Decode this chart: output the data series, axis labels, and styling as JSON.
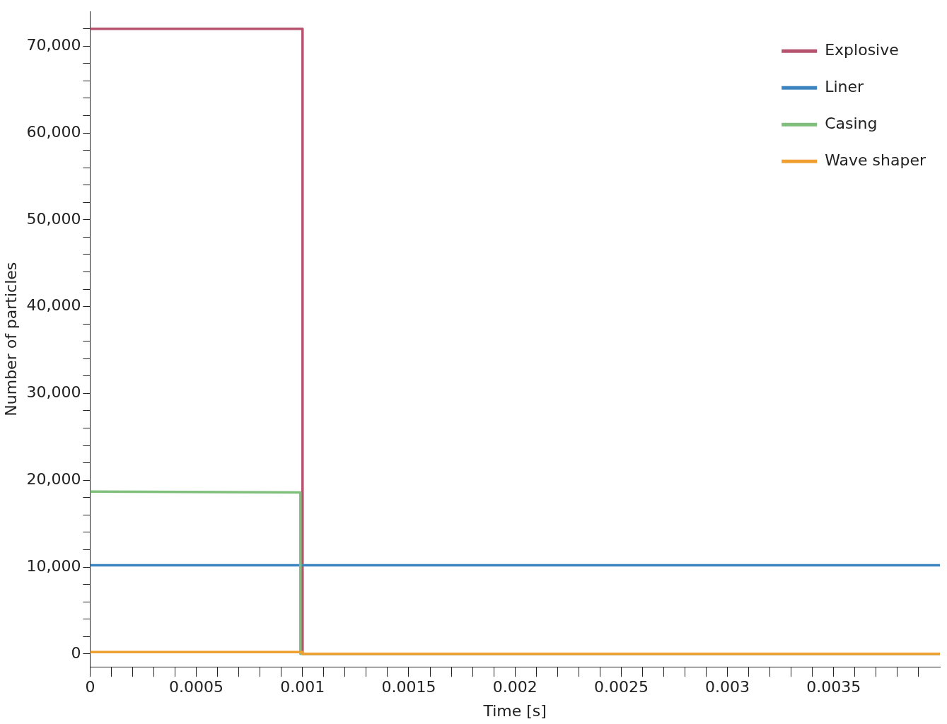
{
  "chart_data": {
    "type": "line",
    "xlabel": "Time [s]",
    "ylabel": "Number of particles",
    "xlim": [
      0,
      0.004
    ],
    "ylim": [
      -1500,
      74000
    ],
    "xticks": [
      0,
      {
        "value": 0.0001,
        "label": null
      },
      {
        "value": 0.0002,
        "label": null
      },
      {
        "value": 0.0003,
        "label": null
      },
      {
        "value": 0.0004,
        "label": null
      },
      0.0005,
      {
        "value": 0.0006,
        "label": null
      },
      {
        "value": 0.0007,
        "label": null
      },
      {
        "value": 0.0008,
        "label": null
      },
      {
        "value": 0.0009,
        "label": null
      },
      0.001,
      {
        "value": 0.0011,
        "label": null
      },
      {
        "value": 0.0012,
        "label": null
      },
      {
        "value": 0.0013,
        "label": null
      },
      {
        "value": 0.0014,
        "label": null
      },
      0.0015,
      {
        "value": 0.0016,
        "label": null
      },
      {
        "value": 0.0017,
        "label": null
      },
      {
        "value": 0.0018,
        "label": null
      },
      {
        "value": 0.0019,
        "label": null
      },
      0.002,
      {
        "value": 0.0021,
        "label": null
      },
      {
        "value": 0.0022,
        "label": null
      },
      {
        "value": 0.0023,
        "label": null
      },
      {
        "value": 0.0024,
        "label": null
      },
      0.0025,
      {
        "value": 0.0026,
        "label": null
      },
      {
        "value": 0.0027,
        "label": null
      },
      {
        "value": 0.0028,
        "label": null
      },
      {
        "value": 0.0029,
        "label": null
      },
      0.003,
      {
        "value": 0.0031,
        "label": null
      },
      {
        "value": 0.0032,
        "label": null
      },
      {
        "value": 0.0033,
        "label": null
      },
      {
        "value": 0.0034,
        "label": null
      },
      0.0035,
      {
        "value": 0.0036,
        "label": null
      },
      {
        "value": 0.0037,
        "label": null
      },
      {
        "value": 0.0038,
        "label": null
      },
      {
        "value": 0.0039,
        "label": null
      }
    ],
    "yticks": [
      {
        "value": 0,
        "label": "0"
      },
      {
        "value": 2000,
        "label": null
      },
      {
        "value": 4000,
        "label": null
      },
      {
        "value": 6000,
        "label": null
      },
      {
        "value": 8000,
        "label": null
      },
      {
        "value": 10000,
        "label": "10,000"
      },
      {
        "value": 12000,
        "label": null
      },
      {
        "value": 14000,
        "label": null
      },
      {
        "value": 16000,
        "label": null
      },
      {
        "value": 18000,
        "label": null
      },
      {
        "value": 20000,
        "label": "20,000"
      },
      {
        "value": 22000,
        "label": null
      },
      {
        "value": 24000,
        "label": null
      },
      {
        "value": 26000,
        "label": null
      },
      {
        "value": 28000,
        "label": null
      },
      {
        "value": 30000,
        "label": "30,000"
      },
      {
        "value": 32000,
        "label": null
      },
      {
        "value": 34000,
        "label": null
      },
      {
        "value": 36000,
        "label": null
      },
      {
        "value": 38000,
        "label": null
      },
      {
        "value": 40000,
        "label": "40,000"
      },
      {
        "value": 42000,
        "label": null
      },
      {
        "value": 44000,
        "label": null
      },
      {
        "value": 46000,
        "label": null
      },
      {
        "value": 48000,
        "label": null
      },
      {
        "value": 50000,
        "label": "50,000"
      },
      {
        "value": 52000,
        "label": null
      },
      {
        "value": 54000,
        "label": null
      },
      {
        "value": 56000,
        "label": null
      },
      {
        "value": 58000,
        "label": null
      },
      {
        "value": 60000,
        "label": "60,000"
      },
      {
        "value": 62000,
        "label": null
      },
      {
        "value": 64000,
        "label": null
      },
      {
        "value": 66000,
        "label": null
      },
      {
        "value": 68000,
        "label": null
      },
      {
        "value": 70000,
        "label": "70,000"
      },
      {
        "value": 72000,
        "label": null
      }
    ],
    "grid": false,
    "legend": "top right",
    "marker": "none",
    "line_style": "solid",
    "series": [
      {
        "name": "Explosive",
        "color": "#b5536e",
        "x": [
          0,
          0.001,
          0.001,
          0.004
        ],
        "values": [
          72000,
          72000,
          0,
          0
        ]
      },
      {
        "name": "Liner",
        "color": "#3d85c0",
        "x": [
          0,
          0.004
        ],
        "values": [
          10200,
          10200
        ]
      },
      {
        "name": "Casing",
        "color": "#7fbf7b",
        "x": [
          0,
          0.00099,
          0.00099,
          0.004
        ],
        "values": [
          18700,
          18600,
          0,
          0
        ]
      },
      {
        "name": "Wave shaper",
        "color": "#f0a030",
        "x": [
          0,
          0.001,
          0.001,
          0.004
        ],
        "values": [
          200,
          200,
          0,
          0
        ]
      }
    ]
  }
}
